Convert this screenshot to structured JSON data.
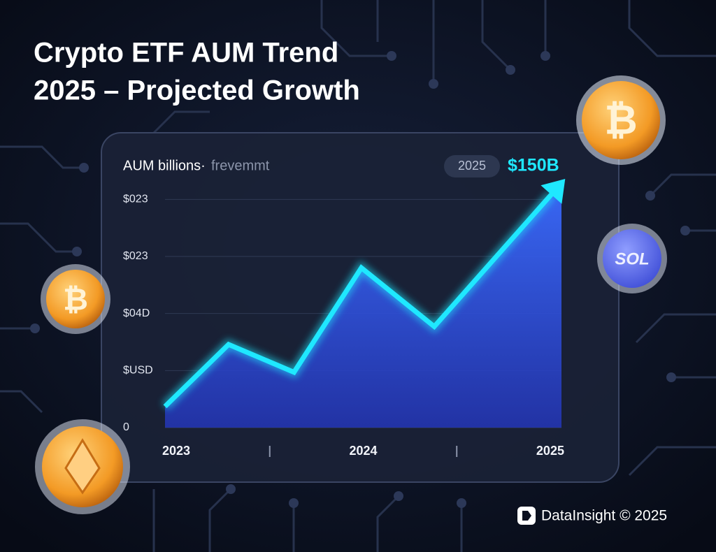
{
  "title_lines": [
    "Crypto ETF AUM Trend",
    "2025 – Projected Growth"
  ],
  "chart_data": {
    "type": "line",
    "y_label": "AUM billions·",
    "subtitle": "frevemmt",
    "x": [
      2022.94,
      2023.28,
      2023.63,
      2023.99,
      2024.38,
      2025.06
    ],
    "values": [
      13,
      51,
      34,
      98,
      62,
      150
    ],
    "color": "#1fe8ff",
    "xlim": [
      2022.94,
      2025.06
    ],
    "xticks": [
      2023,
      2024,
      2025
    ],
    "xminorticks": [
      2023.5,
      2024.5
    ],
    "ylim": [
      0,
      150
    ],
    "yticks": [
      {
        "value": 140,
        "label": "$023"
      },
      {
        "value": 105,
        "label": "$023"
      },
      {
        "value": 70,
        "label": "$04D"
      },
      {
        "value": 35,
        "label": "$USD"
      },
      0
    ],
    "grid": true,
    "callout": {
      "year": "2025",
      "label": "$150B"
    }
  },
  "coins": {
    "bitcoin": "₿",
    "solana": "SOL"
  },
  "footer": "DataInsight © 2025"
}
